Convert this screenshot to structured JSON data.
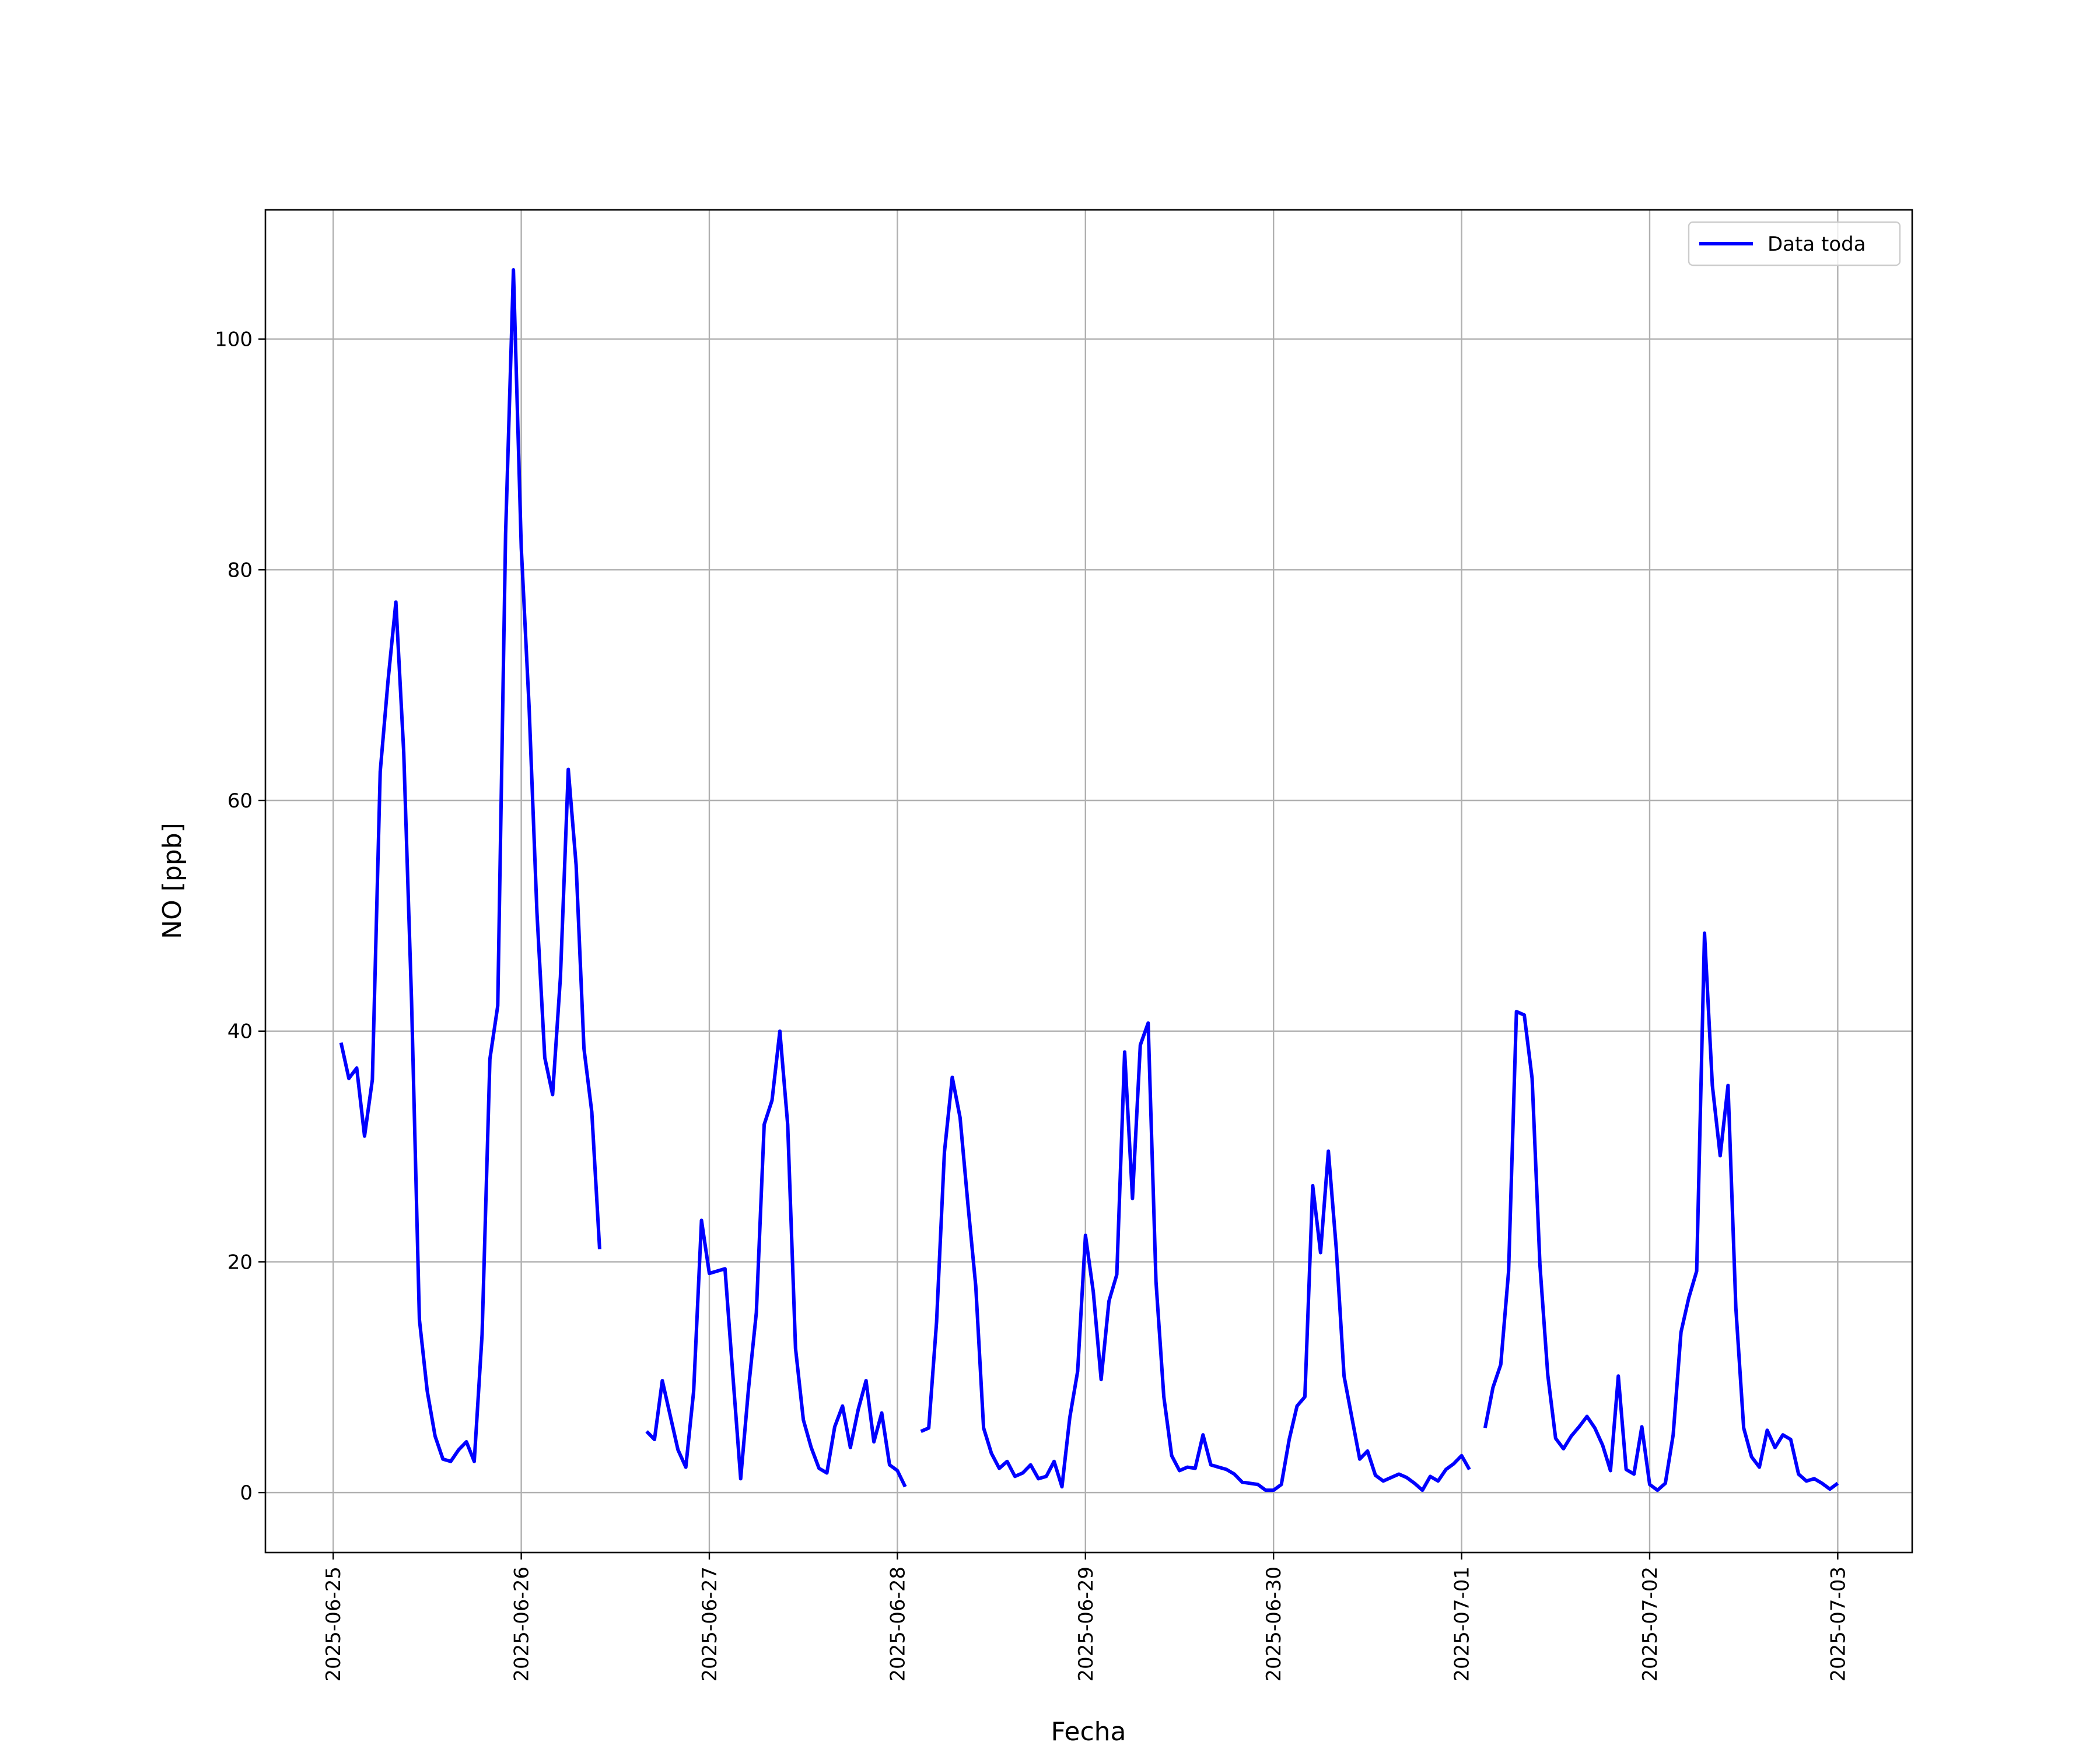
{
  "chart_data": {
    "type": "line",
    "xlabel": "Fecha",
    "ylabel": "NO [ppb]",
    "x": [
      "2025-06-25 01:00",
      "2025-06-25 02:00",
      "2025-06-25 03:00",
      "2025-06-25 04:00",
      "2025-06-25 05:00",
      "2025-06-25 06:00",
      "2025-06-25 07:00",
      "2025-06-25 08:00",
      "2025-06-25 09:00",
      "2025-06-25 10:00",
      "2025-06-25 11:00",
      "2025-06-25 12:00",
      "2025-06-25 13:00",
      "2025-06-25 14:00",
      "2025-06-25 15:00",
      "2025-06-25 16:00",
      "2025-06-25 17:00",
      "2025-06-25 18:00",
      "2025-06-25 19:00",
      "2025-06-25 20:00",
      "2025-06-25 21:00",
      "2025-06-25 22:00",
      "2025-06-25 23:00",
      "2025-06-26 00:00",
      "2025-06-26 01:00",
      "2025-06-26 02:00",
      "2025-06-26 03:00",
      "2025-06-26 04:00",
      "2025-06-26 05:00",
      "2025-06-26 06:00",
      "2025-06-26 07:00",
      "2025-06-26 08:00",
      "2025-06-26 09:00",
      "2025-06-26 10:00",
      "2025-06-26 11:00",
      "2025-06-26 12:00",
      "2025-06-26 13:00",
      "2025-06-26 14:00",
      "2025-06-26 15:00",
      "2025-06-26 16:00",
      "2025-06-26 17:00",
      "2025-06-26 18:00",
      "2025-06-26 19:00",
      "2025-06-26 20:00",
      "2025-06-26 21:00",
      "2025-06-26 22:00",
      "2025-06-26 23:00",
      "2025-06-27 00:00",
      "2025-06-27 01:00",
      "2025-06-27 02:00",
      "2025-06-27 03:00",
      "2025-06-27 04:00",
      "2025-06-27 05:00",
      "2025-06-27 06:00",
      "2025-06-27 07:00",
      "2025-06-27 08:00",
      "2025-06-27 09:00",
      "2025-06-27 10:00",
      "2025-06-27 11:00",
      "2025-06-27 12:00",
      "2025-06-27 13:00",
      "2025-06-27 14:00",
      "2025-06-27 15:00",
      "2025-06-27 16:00",
      "2025-06-27 17:00",
      "2025-06-27 18:00",
      "2025-06-27 19:00",
      "2025-06-27 20:00",
      "2025-06-27 21:00",
      "2025-06-27 22:00",
      "2025-06-27 23:00",
      "2025-06-28 00:00",
      "2025-06-28 01:00",
      "2025-06-28 02:00",
      "2025-06-28 03:00",
      "2025-06-28 04:00",
      "2025-06-28 05:00",
      "2025-06-28 06:00",
      "2025-06-28 07:00",
      "2025-06-28 08:00",
      "2025-06-28 09:00",
      "2025-06-28 10:00",
      "2025-06-28 11:00",
      "2025-06-28 12:00",
      "2025-06-28 13:00",
      "2025-06-28 14:00",
      "2025-06-28 15:00",
      "2025-06-28 16:00",
      "2025-06-28 17:00",
      "2025-06-28 18:00",
      "2025-06-28 19:00",
      "2025-06-28 20:00",
      "2025-06-28 21:00",
      "2025-06-28 22:00",
      "2025-06-28 23:00",
      "2025-06-29 00:00",
      "2025-06-29 01:00",
      "2025-06-29 02:00",
      "2025-06-29 03:00",
      "2025-06-29 04:00",
      "2025-06-29 05:00",
      "2025-06-29 06:00",
      "2025-06-29 07:00",
      "2025-06-29 08:00",
      "2025-06-29 09:00",
      "2025-06-29 10:00",
      "2025-06-29 11:00",
      "2025-06-29 12:00",
      "2025-06-29 13:00",
      "2025-06-29 14:00",
      "2025-06-29 15:00",
      "2025-06-29 16:00",
      "2025-06-29 17:00",
      "2025-06-29 18:00",
      "2025-06-29 19:00",
      "2025-06-29 20:00",
      "2025-06-29 21:00",
      "2025-06-29 22:00",
      "2025-06-29 23:00",
      "2025-06-30 00:00",
      "2025-06-30 01:00",
      "2025-06-30 02:00",
      "2025-06-30 03:00",
      "2025-06-30 04:00",
      "2025-06-30 05:00",
      "2025-06-30 06:00",
      "2025-06-30 07:00",
      "2025-06-30 08:00",
      "2025-06-30 09:00",
      "2025-06-30 10:00",
      "2025-06-30 11:00",
      "2025-06-30 12:00",
      "2025-06-30 13:00",
      "2025-06-30 14:00",
      "2025-06-30 15:00",
      "2025-06-30 16:00",
      "2025-06-30 17:00",
      "2025-06-30 18:00",
      "2025-06-30 19:00",
      "2025-06-30 20:00",
      "2025-06-30 21:00",
      "2025-06-30 22:00",
      "2025-06-30 23:00",
      "2025-07-01 00:00",
      "2025-07-01 01:00",
      "2025-07-01 02:00",
      "2025-07-01 03:00",
      "2025-07-01 04:00",
      "2025-07-01 05:00",
      "2025-07-01 06:00",
      "2025-07-01 07:00",
      "2025-07-01 08:00",
      "2025-07-01 09:00",
      "2025-07-01 10:00",
      "2025-07-01 11:00",
      "2025-07-01 12:00",
      "2025-07-01 13:00",
      "2025-07-01 14:00",
      "2025-07-01 15:00",
      "2025-07-01 16:00",
      "2025-07-01 17:00",
      "2025-07-01 18:00",
      "2025-07-01 19:00",
      "2025-07-01 20:00",
      "2025-07-01 21:00",
      "2025-07-01 22:00",
      "2025-07-01 23:00",
      "2025-07-02 00:00",
      "2025-07-02 01:00",
      "2025-07-02 02:00",
      "2025-07-02 03:00",
      "2025-07-02 04:00",
      "2025-07-02 05:00",
      "2025-07-02 06:00",
      "2025-07-02 07:00",
      "2025-07-02 08:00",
      "2025-07-02 09:00",
      "2025-07-02 10:00",
      "2025-07-02 11:00",
      "2025-07-02 12:00",
      "2025-07-02 13:00",
      "2025-07-02 14:00",
      "2025-07-02 15:00",
      "2025-07-02 16:00",
      "2025-07-02 17:00",
      "2025-07-02 18:00",
      "2025-07-02 19:00",
      "2025-07-02 20:00",
      "2025-07-02 21:00",
      "2025-07-02 22:00",
      "2025-07-02 23:00",
      "2025-07-03 00:00"
    ],
    "series": [
      {
        "name": "Data toda",
        "color": "#0000ff",
        "values": [
          39,
          35.9,
          36.8,
          30.9,
          35.8,
          62.5,
          70.4,
          77.2,
          64.2,
          42.6,
          15.0,
          8.8,
          4.9,
          2.9,
          2.7,
          3.7,
          4.4,
          2.7,
          13.7,
          37.6,
          42.2,
          83.1,
          106.0,
          81.9,
          68.1,
          50.3,
          37.7,
          34.5,
          44.7,
          62.7,
          54.4,
          38.5,
          33.0,
          21.1,
          null,
          null,
          null,
          null,
          null,
          5.3,
          4.6,
          9.7,
          6.7,
          3.7,
          2.2,
          8.8,
          23.6,
          19.0,
          19.2,
          19.4,
          10.2,
          1.2,
          9.0,
          15.6,
          31.9,
          34.0,
          40.0,
          31.9,
          12.5,
          6.3,
          3.9,
          2.1,
          1.7,
          5.7,
          7.5,
          3.9,
          7.2,
          9.7,
          4.4,
          6.9,
          2.4,
          1.9,
          0.5,
          null,
          5.3,
          5.6,
          14.8,
          29.5,
          36.0,
          32.5,
          25.0,
          17.9,
          5.6,
          3.4,
          2.1,
          2.7,
          1.4,
          1.7,
          2.4,
          1.2,
          1.4,
          2.7,
          0.5,
          6.5,
          10.5,
          22.3,
          17.4,
          9.8,
          16.6,
          18.9,
          38.2,
          25.5,
          38.8,
          40.7,
          18.3,
          8.3,
          3.2,
          1.9,
          2.2,
          2.1,
          5.0,
          2.4,
          2.2,
          2.0,
          1.6,
          0.9,
          0.8,
          0.7,
          0.2,
          0.2,
          0.7,
          4.6,
          7.5,
          8.3,
          26.6,
          20.8,
          29.6,
          21.2,
          10.1,
          6.5,
          2.9,
          3.6,
          1.5,
          1.0,
          1.3,
          1.6,
          1.3,
          0.8,
          0.2,
          1.4,
          1.0,
          2.0,
          2.5,
          3.2,
          2.0,
          null,
          5.6,
          9.1,
          11.1,
          19.2,
          41.7,
          41.4,
          35.9,
          19.7,
          10.2,
          4.7,
          3.8,
          4.9,
          5.7,
          6.6,
          5.6,
          4.1,
          1.9,
          10.1,
          2.0,
          1.6,
          5.7,
          0.7,
          0.2,
          0.8,
          5.0,
          13.9,
          16.9,
          19.2,
          48.5,
          35.3,
          29.2,
          35.3,
          16.0,
          5.6,
          3.1,
          2.2,
          5.4,
          3.9,
          5.0,
          4.6,
          1.6,
          1.0,
          1.2,
          0.8,
          0.3,
          0.8
        ]
      }
    ],
    "xlim": [
      "2025-06-24 15:21",
      "2025-07-03 09:30"
    ],
    "xticks": [
      "2025-06-25",
      "2025-06-26",
      "2025-06-27",
      "2025-06-28",
      "2025-06-29",
      "2025-06-30",
      "2025-07-01",
      "2025-07-02",
      "2025-07-03"
    ],
    "ylim": [
      -5.2,
      111.2
    ],
    "yticks": [
      0,
      20,
      40,
      60,
      80,
      100
    ],
    "grid": true,
    "legend": "upper right"
  }
}
